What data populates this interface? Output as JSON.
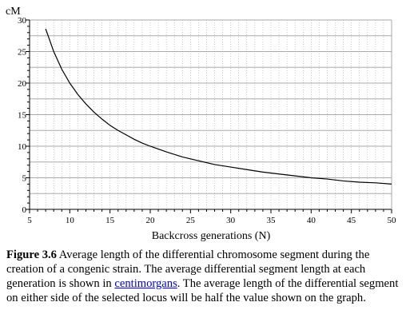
{
  "chart_data": {
    "type": "line",
    "ylabel": "cM",
    "xlabel": "Backcross generations (N)",
    "xlim": [
      5,
      50
    ],
    "ylim": [
      0,
      30
    ],
    "x_ticks": [
      5,
      10,
      15,
      20,
      25,
      30,
      35,
      40,
      45,
      50
    ],
    "y_ticks": [
      0,
      5,
      10,
      15,
      20,
      25,
      30
    ],
    "grid": true,
    "colors": {
      "line": "#000000",
      "grid": "#aaaaaa",
      "axis": "#000000"
    },
    "series": [
      {
        "x": [
          7,
          8,
          9,
          10,
          11,
          12,
          13,
          14,
          15,
          16,
          17,
          18,
          19,
          20,
          22,
          24,
          26,
          28,
          30,
          32,
          34,
          36,
          38,
          40,
          42,
          44,
          46,
          48,
          50
        ],
        "y": [
          28.6,
          25.0,
          22.2,
          20.0,
          18.2,
          16.7,
          15.4,
          14.3,
          13.3,
          12.5,
          11.8,
          11.1,
          10.5,
          10.0,
          9.1,
          8.3,
          7.7,
          7.1,
          6.7,
          6.3,
          5.9,
          5.6,
          5.3,
          5.0,
          4.8,
          4.5,
          4.3,
          4.2,
          4.0
        ]
      }
    ]
  },
  "caption": {
    "label": "Figure 3.6",
    "text_before_link": " Average length of the differential chromosome segment during the creation of a congenic strain. The average differential segment length at each generation is shown in ",
    "link_text": "centimorgans",
    "text_after_link": ". The average length of the differential segment on either side of the selected locus will be half the value shown on the graph."
  }
}
